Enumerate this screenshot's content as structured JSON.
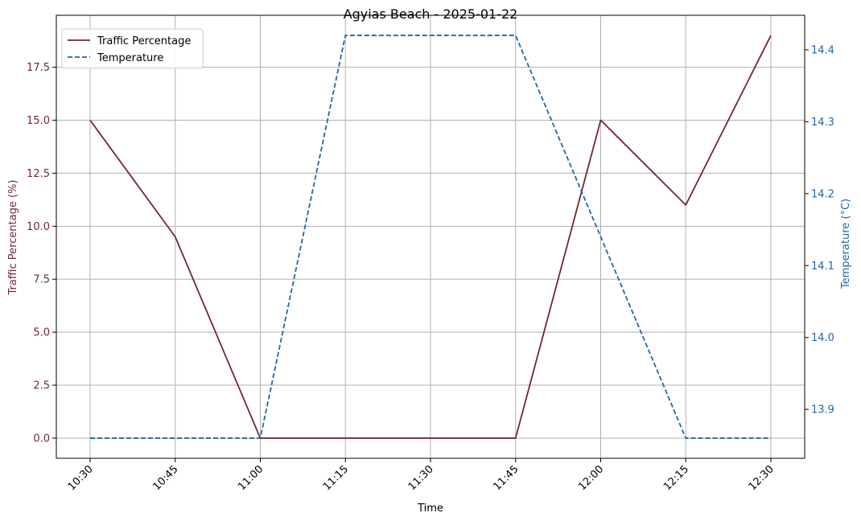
{
  "chart_data": {
    "type": "line",
    "title": "Agyias Beach - 2025-01-22",
    "xlabel": "Time",
    "ylabel_left": "Traffic Percentage (%)",
    "ylabel_right": "Temperature (°C)",
    "categories": [
      "10:30",
      "10:45",
      "11:00",
      "11:15",
      "11:30",
      "11:45",
      "12:00",
      "12:15",
      "12:30"
    ],
    "series": [
      {
        "name": "Traffic Percentage",
        "axis": "left",
        "style": "solid",
        "color": "#722540",
        "values": [
          15.0,
          9.5,
          0.0,
          0.0,
          0.0,
          0.0,
          15.0,
          11.0,
          19.0
        ]
      },
      {
        "name": "Temperature",
        "axis": "right",
        "style": "dashed",
        "color": "#2166ac",
        "x_values": [
          "10:30",
          "10:45",
          "11:00",
          "11:15",
          "11:45",
          "12:15",
          "12:30"
        ],
        "values": [
          13.86,
          13.86,
          13.86,
          14.42,
          14.42,
          13.86,
          13.86
        ]
      }
    ],
    "ylim_left": [
      -0.95,
      19.95
    ],
    "ylim_right": [
      13.832,
      14.448
    ],
    "yticks_left": [
      "0.0",
      "2.5",
      "5.0",
      "7.5",
      "10.0",
      "12.5",
      "15.0",
      "17.5"
    ],
    "yticks_right": [
      "13.9",
      "14.0",
      "14.1",
      "14.2",
      "14.3",
      "14.4"
    ],
    "grid": true,
    "legend_position": "top-left",
    "colors": {
      "left_axis": "#722540",
      "right_axis": "#2166ac",
      "grid": "#b0b0b0"
    }
  }
}
